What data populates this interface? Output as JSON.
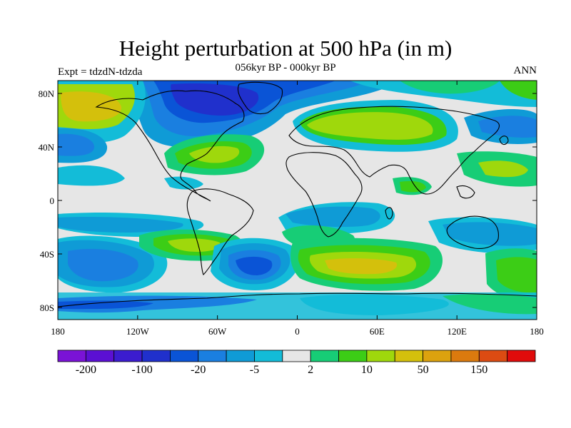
{
  "title": "Height perturbation at 500 hPa (in m)",
  "subtitle": "056kyr BP - 000kyr BP",
  "left_label": "Expt = tdzdN-tdzda",
  "right_label": "ANN",
  "x_ticks": [
    "180",
    "120W",
    "60W",
    "0",
    "60E",
    "120E",
    "180"
  ],
  "y_ticks": [
    "80N",
    "40N",
    "0",
    "40S",
    "80S"
  ],
  "colorbar": {
    "colors": [
      "#7a13d6",
      "#5b10d3",
      "#3b1ccf",
      "#2030cc",
      "#0a54d6",
      "#1a7fe0",
      "#0f9bd6",
      "#13bcd8",
      "#e6e6e6",
      "#17cd76",
      "#3ccd16",
      "#9fd80c",
      "#d4c00c",
      "#dca20e",
      "#db7a0e",
      "#dc4b12",
      "#e00b0b"
    ],
    "labels": [
      "-200",
      "-100",
      "-20",
      "-5",
      "2",
      "10",
      "50",
      "150"
    ]
  },
  "colors": {
    "coast": "#000000",
    "background": "#e6e6e6"
  }
}
